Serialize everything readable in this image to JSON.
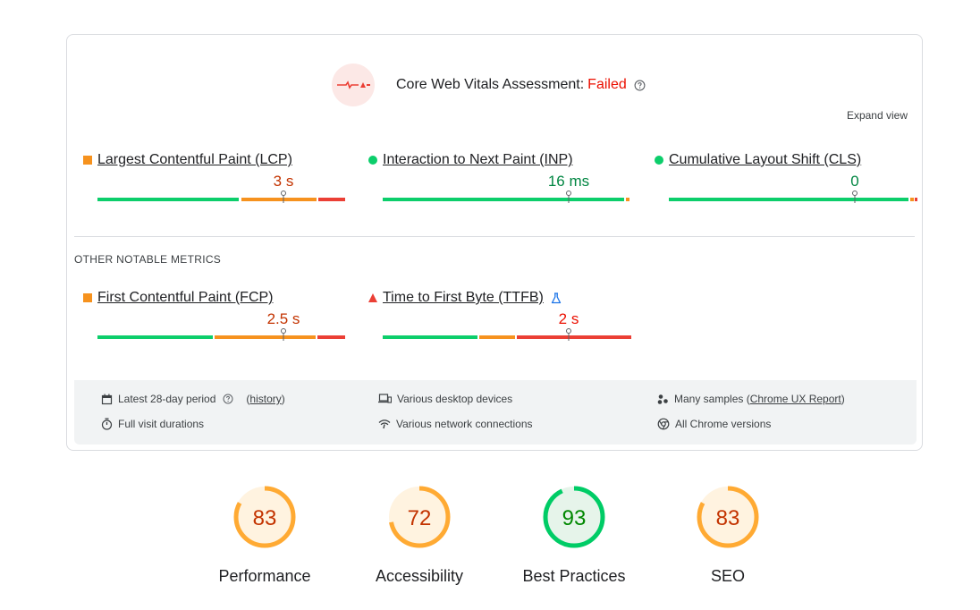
{
  "assessment": {
    "title": "Core Web Vitals Assessment:",
    "status": "Failed",
    "expand_label": "Expand view"
  },
  "core_metrics": [
    {
      "name": "Largest Contentful Paint (LCP)",
      "value": "3 s",
      "rating": "needs-improvement"
    },
    {
      "name": "Interaction to Next Paint (INP)",
      "value": "16 ms",
      "rating": "good"
    },
    {
      "name": "Cumulative Layout Shift (CLS)",
      "value": "0",
      "rating": "good"
    }
  ],
  "other_heading": "OTHER NOTABLE METRICS",
  "other_metrics": [
    {
      "name": "First Contentful Paint (FCP)",
      "value": "2.5 s",
      "rating": "needs-improvement"
    },
    {
      "name": "Time to First Byte (TTFB)",
      "value": "2 s",
      "rating": "poor"
    }
  ],
  "info": {
    "period": "Latest 28-day period",
    "history_link": "history",
    "durations": "Full visit durations",
    "devices": "Various desktop devices",
    "network": "Various network connections",
    "samples_prefix": "Many samples (",
    "samples_link": "Chrome UX Report",
    "samples_suffix": ")",
    "chrome": "All Chrome versions"
  },
  "scores": [
    {
      "label": "Performance",
      "value": "83",
      "fraction": 0.83,
      "rating": "average"
    },
    {
      "label": "Accessibility",
      "value": "72",
      "fraction": 0.72,
      "rating": "average"
    },
    {
      "label": "Best Practices",
      "value": "93",
      "fraction": 0.93,
      "rating": "pass"
    },
    {
      "label": "SEO",
      "value": "83",
      "fraction": 0.83,
      "rating": "average"
    }
  ],
  "colors": {
    "good": "#0cce6b",
    "needs_improvement": "#f6921e",
    "poor": "#eb3f35",
    "failed_text": "#eb0f00"
  }
}
